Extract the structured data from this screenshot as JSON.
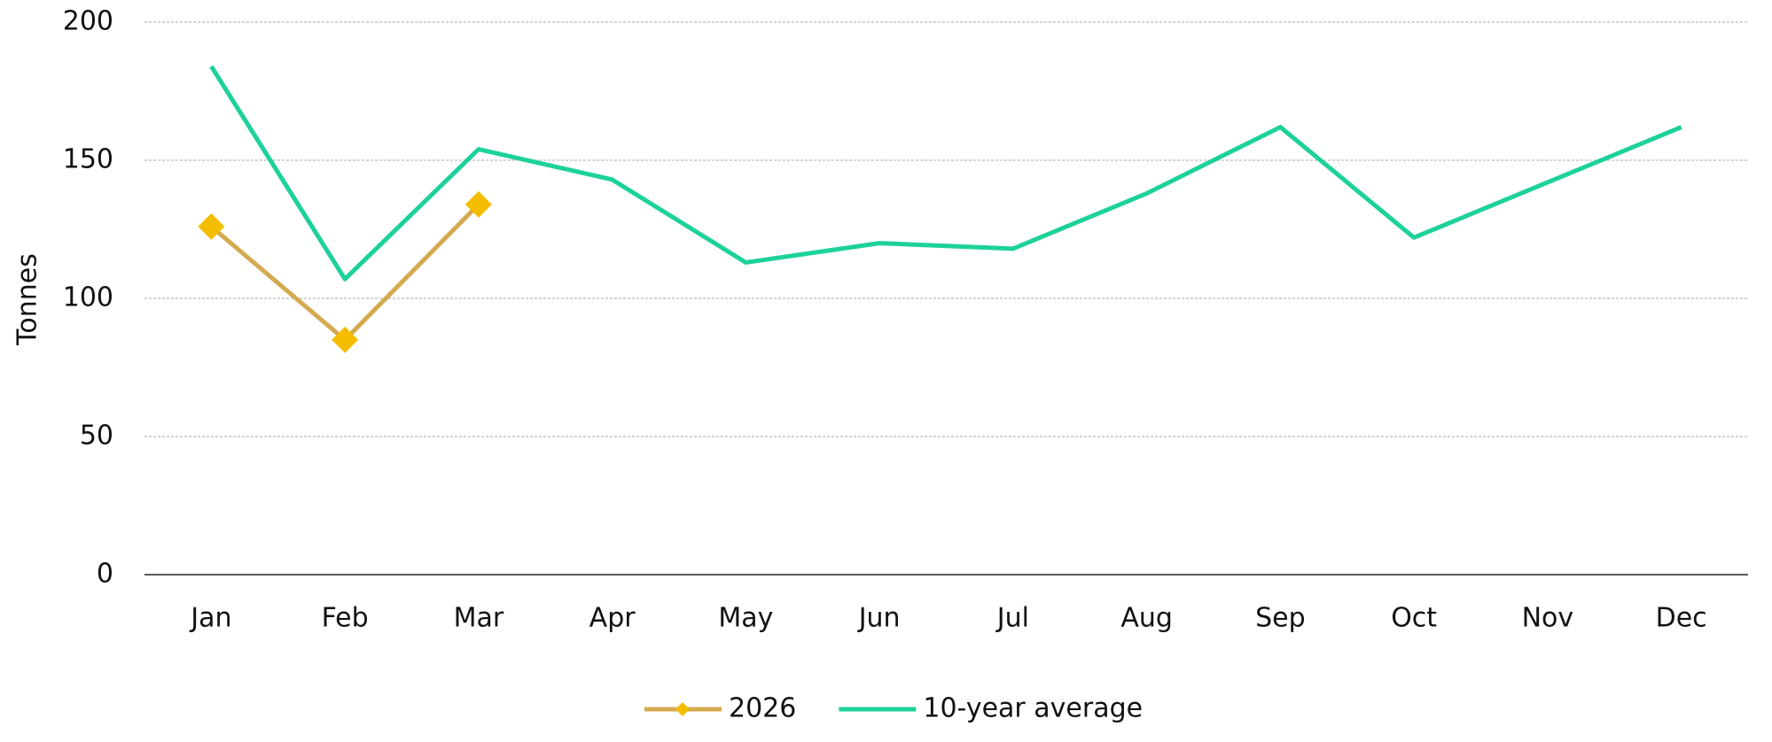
{
  "chart_data": {
    "type": "line",
    "y_label": "Tonnes",
    "categories": [
      "Jan",
      "Feb",
      "Mar",
      "Apr",
      "May",
      "Jun",
      "Jul",
      "Aug",
      "Sep",
      "Oct",
      "Nov",
      "Dec"
    ],
    "series": [
      {
        "name": "2026",
        "color": "#d4aa50",
        "marker": "diamond",
        "marker_color": "#f5bd00",
        "values": [
          126,
          85,
          134,
          null,
          null,
          null,
          null,
          null,
          null,
          null,
          null,
          null
        ]
      },
      {
        "name": "10-year average",
        "color": "#1dd19a",
        "values": [
          184,
          107,
          154,
          143,
          113,
          120,
          118,
          138,
          162,
          122,
          142,
          162
        ]
      }
    ],
    "ylim": [
      0,
      200
    ],
    "yticks": [
      0,
      50,
      100,
      150,
      200
    ],
    "grid": true,
    "legend": "bottom"
  }
}
